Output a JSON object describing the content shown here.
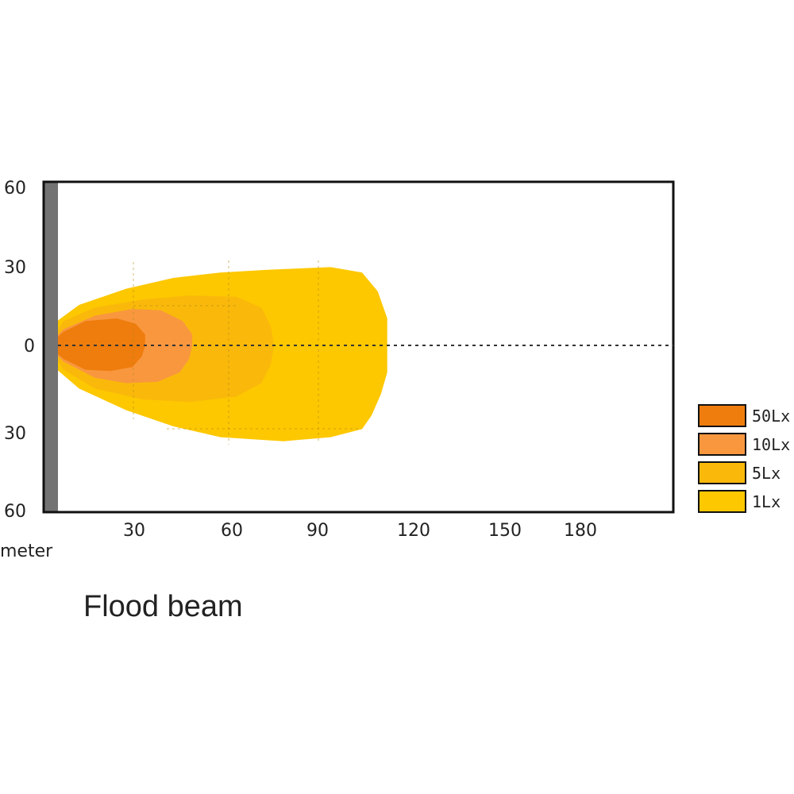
{
  "chart_data": {
    "type": "area",
    "title": "Flood beam",
    "xlabel": "meter",
    "ylabel": "",
    "xlim": [
      0,
      210
    ],
    "ylim": [
      -60,
      60
    ],
    "x_ticks": [
      "30",
      "60",
      "90",
      "120",
      "150",
      "180"
    ],
    "y_ticks": [
      "60",
      "30",
      "0",
      "30",
      "60"
    ],
    "grid": false,
    "legend_position": "right",
    "series": [
      {
        "name": "1Lx",
        "color": "#fdc800",
        "points": [
          [
            0,
            0
          ],
          [
            3,
            9
          ],
          [
            10,
            15
          ],
          [
            25,
            21
          ],
          [
            40,
            25
          ],
          [
            55,
            27
          ],
          [
            70,
            28
          ],
          [
            90,
            29
          ],
          [
            100,
            27
          ],
          [
            105,
            20
          ],
          [
            108,
            10
          ],
          [
            108,
            0
          ],
          [
            108,
            -10
          ],
          [
            106,
            -18
          ],
          [
            103,
            -26
          ],
          [
            100,
            -31
          ],
          [
            90,
            -34
          ],
          [
            75,
            -35.5
          ],
          [
            55,
            -34
          ],
          [
            40,
            -30
          ],
          [
            25,
            -24
          ],
          [
            10,
            -16
          ],
          [
            3,
            -9
          ]
        ]
      },
      {
        "name": "5Lx",
        "color": "#fab90a",
        "points": [
          [
            0,
            0
          ],
          [
            5,
            9
          ],
          [
            15,
            14
          ],
          [
            30,
            17
          ],
          [
            45,
            18.5
          ],
          [
            60,
            18
          ],
          [
            68,
            14
          ],
          [
            71,
            7
          ],
          [
            72,
            0
          ],
          [
            71,
            -7
          ],
          [
            68,
            -14
          ],
          [
            60,
            -19
          ],
          [
            45,
            -21
          ],
          [
            30,
            -20
          ],
          [
            15,
            -16
          ],
          [
            5,
            -9
          ]
        ]
      },
      {
        "name": "10Lx",
        "color": "#f9973f",
        "points": [
          [
            0,
            0
          ],
          [
            5,
            6
          ],
          [
            15,
            11
          ],
          [
            27,
            13.5
          ],
          [
            36,
            13
          ],
          [
            43,
            9
          ],
          [
            46,
            4
          ],
          [
            46,
            0
          ],
          [
            45,
            -5
          ],
          [
            42,
            -10
          ],
          [
            35,
            -13.5
          ],
          [
            25,
            -14
          ],
          [
            15,
            -12
          ],
          [
            5,
            -6
          ]
        ]
      },
      {
        "name": "50Lx",
        "color": "#ee7d0d",
        "points": [
          [
            0,
            0
          ],
          [
            5,
            5
          ],
          [
            12,
            9
          ],
          [
            22,
            10
          ],
          [
            28,
            8
          ],
          [
            31,
            4
          ],
          [
            31,
            0
          ],
          [
            30,
            -4
          ],
          [
            27,
            -8
          ],
          [
            20,
            -9.5
          ],
          [
            12,
            -9
          ],
          [
            5,
            -5
          ]
        ]
      }
    ],
    "axis_line_y": 0
  }
}
